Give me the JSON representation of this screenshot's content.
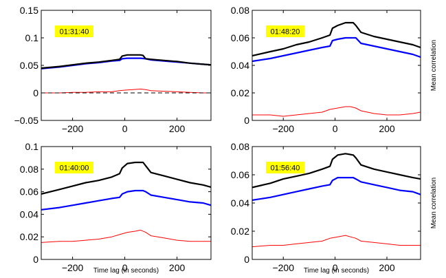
{
  "chart_data": [
    {
      "type": "line",
      "annotation": "01:31:40",
      "xlim": [
        -320,
        330
      ],
      "ylim": [
        -0.05,
        0.15
      ],
      "xticks": [
        -200,
        0,
        200
      ],
      "xtick_labels": [
        "−200",
        "0",
        "200"
      ],
      "yticks": [
        -0.05,
        0,
        0.05,
        0.1,
        0.15
      ],
      "ytick_labels": [
        "−0.05",
        "0",
        "0.05",
        "0.1",
        "0.15"
      ],
      "xlabel": "",
      "ylabel": "",
      "zero_line": true,
      "series": [
        {
          "color": "#000000",
          "x": [
            -320,
            -250,
            -200,
            -150,
            -100,
            -50,
            -20,
            -10,
            10,
            40,
            60,
            70,
            80,
            100,
            150,
            200,
            250,
            300,
            330
          ],
          "y": [
            0.045,
            0.048,
            0.051,
            0.054,
            0.056,
            0.059,
            0.061,
            0.067,
            0.069,
            0.069,
            0.069,
            0.068,
            0.062,
            0.061,
            0.059,
            0.057,
            0.054,
            0.052,
            0.051
          ]
        },
        {
          "color": "#0000ff",
          "x": [
            -320,
            -250,
            -200,
            -150,
            -100,
            -50,
            -20,
            -10,
            10,
            40,
            60,
            80,
            100,
            150,
            200,
            250,
            300,
            330
          ],
          "y": [
            0.044,
            0.047,
            0.05,
            0.053,
            0.055,
            0.058,
            0.059,
            0.062,
            0.063,
            0.063,
            0.063,
            0.062,
            0.06,
            0.058,
            0.056,
            0.054,
            0.052,
            0.051
          ]
        },
        {
          "color": "#ff0000",
          "x": [
            -320,
            -250,
            -200,
            -150,
            -100,
            -50,
            -20,
            0,
            30,
            60,
            80,
            100,
            150,
            200,
            250,
            300,
            330
          ],
          "y": [
            0.0,
            0.0,
            0.001,
            0.001,
            0.002,
            0.002,
            0.004,
            0.005,
            0.006,
            0.007,
            0.006,
            0.004,
            0.003,
            0.002,
            0.001,
            0.0,
            0.0
          ]
        }
      ]
    },
    {
      "type": "line",
      "annotation": "01:48:20",
      "xlim": [
        -320,
        330
      ],
      "ylim": [
        0,
        0.08
      ],
      "xticks": [
        -200,
        0,
        200
      ],
      "xtick_labels": [
        "−200",
        "0",
        "200"
      ],
      "yticks": [
        0,
        0.02,
        0.04,
        0.06,
        0.08
      ],
      "ytick_labels": [
        "0",
        "0.02",
        "0.04",
        "0.06",
        "0.08"
      ],
      "xlabel": "",
      "ylabel": "Mean correlation",
      "series": [
        {
          "color": "#000000",
          "x": [
            -320,
            -250,
            -200,
            -150,
            -100,
            -50,
            -20,
            -10,
            10,
            40,
            70,
            80,
            100,
            150,
            200,
            250,
            300,
            330
          ],
          "y": [
            0.047,
            0.05,
            0.052,
            0.055,
            0.057,
            0.06,
            0.062,
            0.067,
            0.069,
            0.071,
            0.071,
            0.069,
            0.064,
            0.061,
            0.059,
            0.057,
            0.055,
            0.053
          ]
        },
        {
          "color": "#0000ff",
          "x": [
            -320,
            -250,
            -200,
            -150,
            -100,
            -50,
            -20,
            -10,
            10,
            40,
            70,
            80,
            100,
            150,
            200,
            250,
            300,
            330
          ],
          "y": [
            0.043,
            0.045,
            0.047,
            0.049,
            0.051,
            0.053,
            0.054,
            0.058,
            0.059,
            0.06,
            0.06,
            0.06,
            0.056,
            0.054,
            0.052,
            0.05,
            0.048,
            0.046
          ]
        },
        {
          "color": "#ff0000",
          "x": [
            -320,
            -250,
            -200,
            -150,
            -100,
            -50,
            -20,
            10,
            40,
            60,
            80,
            100,
            150,
            200,
            250,
            300,
            330
          ],
          "y": [
            0.004,
            0.004,
            0.003,
            0.004,
            0.005,
            0.006,
            0.008,
            0.009,
            0.01,
            0.01,
            0.009,
            0.007,
            0.005,
            0.004,
            0.004,
            0.005,
            0.006
          ]
        }
      ]
    },
    {
      "type": "line",
      "annotation": "01:40:00",
      "xlim": [
        -320,
        330
      ],
      "ylim": [
        0,
        0.1
      ],
      "xticks": [
        -200,
        0,
        200
      ],
      "xtick_labels": [
        "−200",
        "0",
        "200"
      ],
      "yticks": [
        0,
        0.02,
        0.04,
        0.06,
        0.08,
        0.1
      ],
      "ytick_labels": [
        "0",
        "0.02",
        "0.04",
        "0.06",
        "0.08",
        "0.1"
      ],
      "xlabel": "Time lag (in seconds)",
      "ylabel": "",
      "series": [
        {
          "color": "#000000",
          "x": [
            -320,
            -250,
            -200,
            -150,
            -100,
            -50,
            -20,
            -10,
            10,
            40,
            70,
            80,
            100,
            150,
            200,
            250,
            300,
            330
          ],
          "y": [
            0.058,
            0.062,
            0.065,
            0.068,
            0.07,
            0.073,
            0.076,
            0.081,
            0.085,
            0.086,
            0.086,
            0.083,
            0.077,
            0.074,
            0.071,
            0.068,
            0.066,
            0.064
          ]
        },
        {
          "color": "#0000ff",
          "x": [
            -320,
            -250,
            -200,
            -150,
            -100,
            -50,
            -20,
            -10,
            10,
            40,
            70,
            80,
            100,
            150,
            200,
            250,
            300,
            330
          ],
          "y": [
            0.044,
            0.046,
            0.048,
            0.05,
            0.052,
            0.054,
            0.055,
            0.058,
            0.06,
            0.061,
            0.061,
            0.06,
            0.057,
            0.055,
            0.053,
            0.051,
            0.05,
            0.048
          ]
        },
        {
          "color": "#ff0000",
          "x": [
            -320,
            -250,
            -200,
            -150,
            -100,
            -50,
            -20,
            10,
            40,
            60,
            80,
            100,
            150,
            200,
            250,
            300,
            330
          ],
          "y": [
            0.015,
            0.016,
            0.016,
            0.017,
            0.018,
            0.02,
            0.022,
            0.024,
            0.025,
            0.026,
            0.024,
            0.021,
            0.019,
            0.017,
            0.016,
            0.016,
            0.016
          ]
        }
      ]
    },
    {
      "type": "line",
      "annotation": "01:56:40",
      "xlim": [
        -320,
        330
      ],
      "ylim": [
        0,
        0.08
      ],
      "xticks": [
        -200,
        0,
        200
      ],
      "xtick_labels": [
        "−200",
        "0",
        "200"
      ],
      "yticks": [
        0,
        0.02,
        0.04,
        0.06,
        0.08
      ],
      "ytick_labels": [
        "0",
        "0.02",
        "0.04",
        "0.06",
        "0.08"
      ],
      "xlabel": "Time lag (in seconds)",
      "ylabel": "Mean correlation",
      "series": [
        {
          "color": "#000000",
          "x": [
            -320,
            -250,
            -200,
            -150,
            -100,
            -50,
            -20,
            -10,
            10,
            40,
            70,
            80,
            100,
            150,
            200,
            250,
            300,
            330
          ],
          "y": [
            0.051,
            0.054,
            0.057,
            0.059,
            0.061,
            0.064,
            0.066,
            0.071,
            0.074,
            0.075,
            0.074,
            0.072,
            0.067,
            0.064,
            0.062,
            0.06,
            0.058,
            0.057
          ]
        },
        {
          "color": "#0000ff",
          "x": [
            -320,
            -250,
            -200,
            -150,
            -100,
            -50,
            -20,
            -10,
            10,
            40,
            70,
            80,
            100,
            150,
            200,
            250,
            300,
            330
          ],
          "y": [
            0.042,
            0.044,
            0.046,
            0.048,
            0.05,
            0.052,
            0.053,
            0.056,
            0.058,
            0.058,
            0.058,
            0.057,
            0.055,
            0.053,
            0.051,
            0.049,
            0.048,
            0.046
          ]
        },
        {
          "color": "#ff0000",
          "x": [
            -320,
            -250,
            -200,
            -150,
            -100,
            -50,
            -20,
            10,
            40,
            60,
            80,
            100,
            150,
            200,
            250,
            300,
            330
          ],
          "y": [
            0.009,
            0.01,
            0.01,
            0.011,
            0.012,
            0.013,
            0.015,
            0.016,
            0.017,
            0.016,
            0.015,
            0.013,
            0.012,
            0.011,
            0.01,
            0.01,
            0.01
          ]
        }
      ]
    }
  ]
}
